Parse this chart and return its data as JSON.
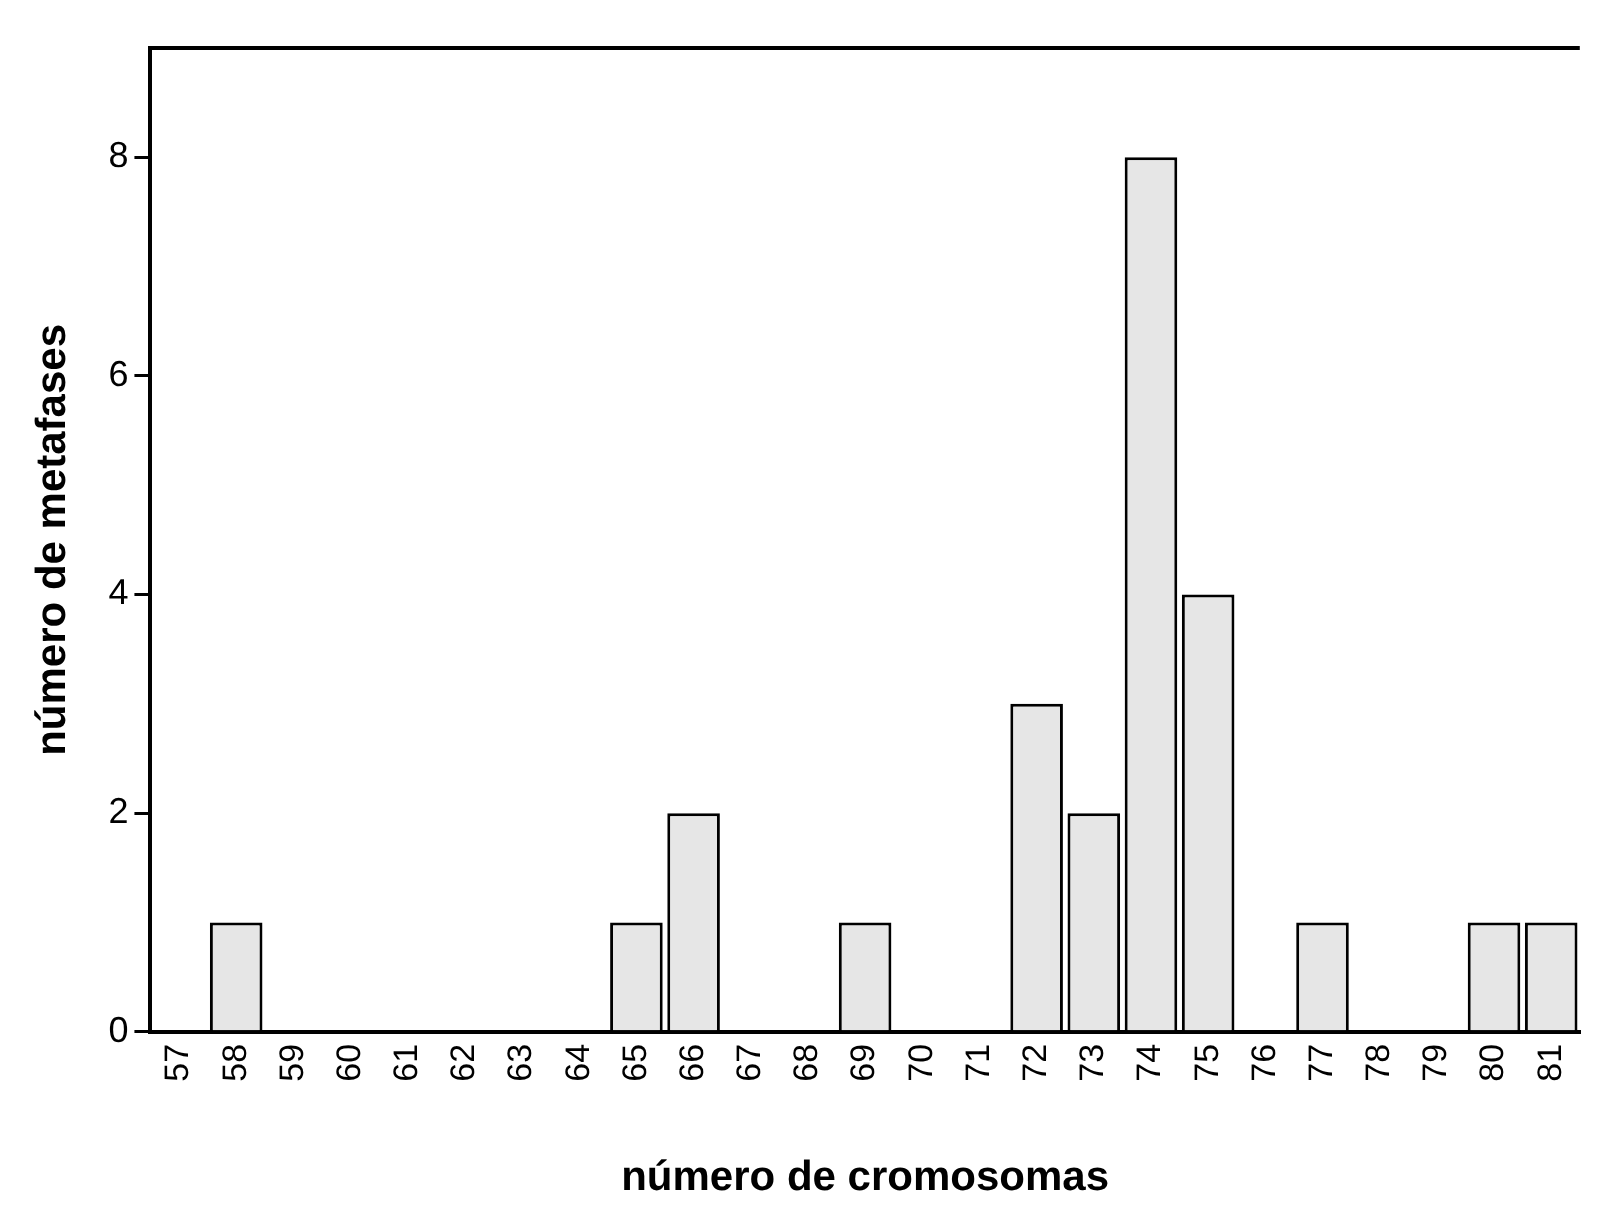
{
  "chart_data": {
    "type": "bar",
    "xlabel": "número de cromosomas",
    "ylabel": "número de metafases",
    "categories": [
      "57",
      "58",
      "59",
      "60",
      "61",
      "62",
      "63",
      "64",
      "65",
      "66",
      "67",
      "68",
      "69",
      "70",
      "71",
      "72",
      "73",
      "74",
      "75",
      "76",
      "77",
      "78",
      "79",
      "80",
      "81"
    ],
    "values": [
      0,
      1,
      0,
      0,
      0,
      0,
      0,
      0,
      1,
      2,
      0,
      0,
      1,
      0,
      0,
      3,
      2,
      8,
      4,
      0,
      1,
      0,
      0,
      1,
      1
    ],
    "color": "#e6e6e6",
    "ylim": [
      0,
      9
    ],
    "yticks": [
      0,
      2,
      4,
      6,
      8
    ],
    "grid": false,
    "legend": false
  }
}
